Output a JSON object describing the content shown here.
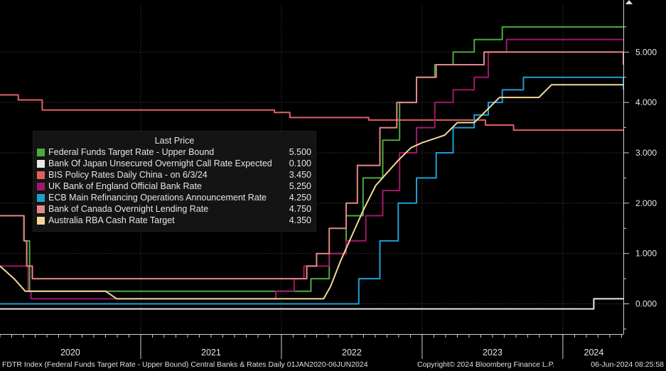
{
  "chart_data": {
    "type": "line",
    "title": "FDTR Index (Federal Funds Target Rate - Upper Bound) Central Banks & Rates",
    "xlabel": "",
    "ylabel": "",
    "ylim": [
      -0.6,
      5.95
    ],
    "yticks": [
      0,
      1,
      2,
      3,
      4,
      5
    ],
    "ytick_labels": [
      "0.000",
      "1.000",
      "2.000",
      "3.000",
      "4.000",
      "5.000"
    ],
    "xlim": [
      2020.0,
      2024.43
    ],
    "x_tick_labels": [
      {
        "label": "2020",
        "x": 2020.5
      },
      {
        "label": "2021",
        "x": 2021.5
      },
      {
        "label": "2022",
        "x": 2022.5
      },
      {
        "label": "2023",
        "x": 2023.5
      },
      {
        "label": "2024",
        "x": 2024.22
      }
    ],
    "x_separators": [
      2021.0,
      2022.0,
      2023.0,
      2024.0
    ],
    "grid": true,
    "legend_position": "upper-left",
    "legend_title": "Last Price",
    "series": [
      {
        "name": "Federal Funds Target Rate - Upper Bound",
        "last": "5.500",
        "color": "#4daa3e",
        "step": true,
        "points": [
          [
            2020.0,
            1.75
          ],
          [
            2020.17,
            1.25
          ],
          [
            2020.21,
            0.25
          ],
          [
            2022.21,
            0.5
          ],
          [
            2022.34,
            1.0
          ],
          [
            2022.46,
            1.75
          ],
          [
            2022.58,
            2.5
          ],
          [
            2022.72,
            3.25
          ],
          [
            2022.84,
            4.0
          ],
          [
            2022.96,
            4.5
          ],
          [
            2023.09,
            4.75
          ],
          [
            2023.22,
            5.0
          ],
          [
            2023.37,
            5.25
          ],
          [
            2023.57,
            5.5
          ],
          [
            2024.43,
            5.5
          ]
        ]
      },
      {
        "name": "Bank Of Japan Unsecured Overnight Call Rate Expected",
        "last": "0.100",
        "color": "#e8e8e8",
        "step": true,
        "points": [
          [
            2020.0,
            -0.1
          ],
          [
            2024.22,
            -0.1
          ],
          [
            2024.22,
            0.1
          ],
          [
            2024.43,
            0.1
          ]
        ]
      },
      {
        "name": "BIS Policy Rates Daily China -  on 6/3/24",
        "last": "3.450",
        "color": "#e05f63",
        "step": true,
        "points": [
          [
            2020.0,
            4.15
          ],
          [
            2020.13,
            4.05
          ],
          [
            2020.3,
            3.85
          ],
          [
            2021.95,
            3.8
          ],
          [
            2022.06,
            3.7
          ],
          [
            2022.62,
            3.65
          ],
          [
            2023.45,
            3.55
          ],
          [
            2023.65,
            3.45
          ],
          [
            2024.43,
            3.45
          ]
        ]
      },
      {
        "name": "UK Bank of England Official Bank Rate",
        "last": "5.250",
        "color": "#a3176a",
        "step": true,
        "points": [
          [
            2020.0,
            0.75
          ],
          [
            2020.2,
            0.25
          ],
          [
            2020.22,
            0.1
          ],
          [
            2021.96,
            0.25
          ],
          [
            2022.09,
            0.5
          ],
          [
            2022.16,
            0.75
          ],
          [
            2022.34,
            1.0
          ],
          [
            2022.46,
            1.25
          ],
          [
            2022.6,
            1.75
          ],
          [
            2022.72,
            2.25
          ],
          [
            2022.84,
            3.0
          ],
          [
            2022.96,
            3.5
          ],
          [
            2023.09,
            4.0
          ],
          [
            2023.22,
            4.25
          ],
          [
            2023.37,
            4.5
          ],
          [
            2023.47,
            5.0
          ],
          [
            2023.6,
            5.25
          ],
          [
            2024.43,
            5.25
          ]
        ]
      },
      {
        "name": "ECB Main Refinancing Operations Announcement Rate",
        "last": "4.250",
        "color": "#1d9fd4",
        "step": true,
        "points": [
          [
            2020.0,
            0.0
          ],
          [
            2022.55,
            0.5
          ],
          [
            2022.7,
            1.25
          ],
          [
            2022.83,
            2.0
          ],
          [
            2022.96,
            2.5
          ],
          [
            2023.1,
            3.0
          ],
          [
            2023.22,
            3.5
          ],
          [
            2023.37,
            3.75
          ],
          [
            2023.47,
            4.0
          ],
          [
            2023.57,
            4.25
          ],
          [
            2023.72,
            4.5
          ],
          [
            2024.42,
            4.5
          ],
          [
            2024.43,
            4.25
          ]
        ]
      },
      {
        "name": "Bank of Canada Overnight Lending Rate",
        "last": "4.750",
        "color": "#e38985",
        "step": true,
        "points": [
          [
            2020.0,
            1.75
          ],
          [
            2020.17,
            1.25
          ],
          [
            2020.19,
            0.75
          ],
          [
            2020.23,
            0.5
          ],
          [
            2022.18,
            0.75
          ],
          [
            2022.25,
            1.0
          ],
          [
            2022.34,
            1.5
          ],
          [
            2022.46,
            2.0
          ],
          [
            2022.54,
            2.75
          ],
          [
            2022.7,
            3.5
          ],
          [
            2022.82,
            4.0
          ],
          [
            2022.96,
            4.5
          ],
          [
            2023.1,
            4.75
          ],
          [
            2023.44,
            5.0
          ],
          [
            2024.42,
            5.0
          ],
          [
            2024.43,
            4.75
          ]
        ]
      },
      {
        "name": "Australia RBA Cash Rate Target",
        "last": "4.350",
        "color": "#f2d898",
        "step": false,
        "points": [
          [
            2020.0,
            0.75
          ],
          [
            2020.1,
            0.5
          ],
          [
            2020.18,
            0.25
          ],
          [
            2020.75,
            0.25
          ],
          [
            2020.83,
            0.1
          ],
          [
            2022.3,
            0.1
          ],
          [
            2022.35,
            0.35
          ],
          [
            2022.42,
            0.85
          ],
          [
            2022.5,
            1.35
          ],
          [
            2022.58,
            1.85
          ],
          [
            2022.67,
            2.35
          ],
          [
            2022.75,
            2.6
          ],
          [
            2022.83,
            2.85
          ],
          [
            2022.92,
            3.1
          ],
          [
            2023.0,
            3.2
          ],
          [
            2023.16,
            3.35
          ],
          [
            2023.25,
            3.6
          ],
          [
            2023.37,
            3.6
          ],
          [
            2023.46,
            3.85
          ],
          [
            2023.55,
            4.1
          ],
          [
            2023.67,
            4.1
          ],
          [
            2023.83,
            4.1
          ],
          [
            2023.92,
            4.35
          ],
          [
            2024.43,
            4.35
          ]
        ]
      }
    ]
  },
  "footer": {
    "left": "FDTR Index (Federal Funds Target Rate - Upper Bound) Central Banks & Rates  Daily 01JAN2020-06JUN2024",
    "center": "Copyright© 2024 Bloomberg Finance L.P.",
    "right": "06-Jun-2024 08:25:58"
  }
}
